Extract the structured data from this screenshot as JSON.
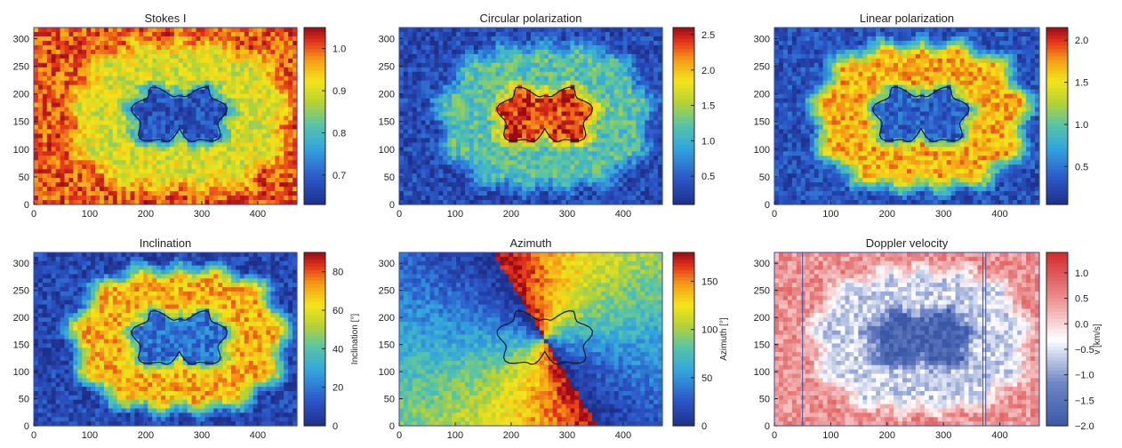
{
  "chart_data": [
    {
      "type": "heatmap",
      "title": "Stokes I",
      "xlim": [
        0,
        470
      ],
      "ylim": [
        0,
        320
      ],
      "xticks": [
        "0",
        "100",
        "200",
        "300",
        "400"
      ],
      "yticks": [
        "0",
        "50",
        "100",
        "150",
        "200",
        "250",
        "300"
      ],
      "colormap": "rainbow",
      "colorbar": {
        "range": [
          0.63,
          1.05
        ],
        "ticks": [
          "0.7",
          "0.8",
          "0.9",
          "1.0"
        ],
        "label": ""
      },
      "field": {
        "umbra": 0.68,
        "penumbra": 0.9,
        "quiet": 1.0
      },
      "contour": true
    },
    {
      "type": "heatmap",
      "title": "Circular polarization",
      "xlim": [
        0,
        470
      ],
      "ylim": [
        0,
        320
      ],
      "xticks": [
        "0",
        "100",
        "200",
        "300",
        "400"
      ],
      "yticks": [
        "0",
        "50",
        "100",
        "150",
        "200",
        "250",
        "300"
      ],
      "colormap": "rainbow",
      "colorbar": {
        "range": [
          0.1,
          2.6
        ],
        "ticks": [
          "0.5",
          "1.0",
          "1.5",
          "2.0",
          "2.5"
        ],
        "label": ""
      },
      "field": {
        "umbra": 2.4,
        "penumbra": 1.2,
        "quiet": 0.35
      },
      "contour": true
    },
    {
      "type": "heatmap",
      "title": "Linear polarization",
      "xlim": [
        0,
        470
      ],
      "ylim": [
        0,
        320
      ],
      "xticks": [
        "0",
        "100",
        "200",
        "300",
        "400"
      ],
      "yticks": [
        "0",
        "50",
        "100",
        "150",
        "200",
        "250",
        "300"
      ],
      "colormap": "rainbow",
      "colorbar": {
        "range": [
          0.05,
          2.15
        ],
        "ticks": [
          "0.5",
          "1.0",
          "1.5",
          "2.0"
        ],
        "label": ""
      },
      "field": {
        "umbra": 0.4,
        "penumbra": 1.7,
        "quiet": 0.3
      },
      "contour": true
    },
    {
      "type": "heatmap",
      "title": "Inclination",
      "xlim": [
        0,
        470
      ],
      "ylim": [
        0,
        320
      ],
      "xticks": [
        "0",
        "100",
        "200",
        "300",
        "400"
      ],
      "yticks": [
        "0",
        "50",
        "100",
        "150",
        "200",
        "250",
        "300"
      ],
      "colormap": "rainbow",
      "colorbar": {
        "range": [
          0,
          90
        ],
        "ticks": [
          "0",
          "20",
          "40",
          "60",
          "80"
        ],
        "label": "Inclination [°]"
      },
      "field": {
        "umbra": 18,
        "penumbra": 70,
        "quiet": 8
      },
      "contour": true
    },
    {
      "type": "heatmap",
      "title": "Azimuth",
      "xlim": [
        0,
        470
      ],
      "ylim": [
        0,
        320
      ],
      "xticks": [
        "0",
        "100",
        "200",
        "300",
        "400"
      ],
      "yticks": [
        "0",
        "50",
        "100",
        "150",
        "200",
        "250",
        "300"
      ],
      "colormap": "rainbow",
      "colorbar": {
        "range": [
          0,
          180
        ],
        "ticks": [
          "0",
          "50",
          "100",
          "150"
        ],
        "label": "Azimuth [°]"
      },
      "field": {
        "mode": "angular"
      },
      "contour": true
    },
    {
      "type": "heatmap",
      "title": "Doppler velocity",
      "xlim": [
        0,
        470
      ],
      "ylim": [
        0,
        320
      ],
      "xticks": [
        "0",
        "100",
        "200",
        "300",
        "400"
      ],
      "yticks": [
        "0",
        "50",
        "100",
        "150",
        "200",
        "250",
        "300"
      ],
      "colormap": "blue-white-red",
      "colorbar": {
        "range": [
          -2.0,
          1.4
        ],
        "ticks": [
          "-2.0",
          "-1.5",
          "-1.0",
          "-0.5",
          "0.0",
          "0.5",
          "1.0"
        ],
        "label": "v [km/s]"
      },
      "field": {
        "umbra": -1.8,
        "penumbra": -0.6,
        "quiet": 0.5
      },
      "vlines_x": [
        50,
        370,
        375
      ],
      "contour": false
    }
  ]
}
